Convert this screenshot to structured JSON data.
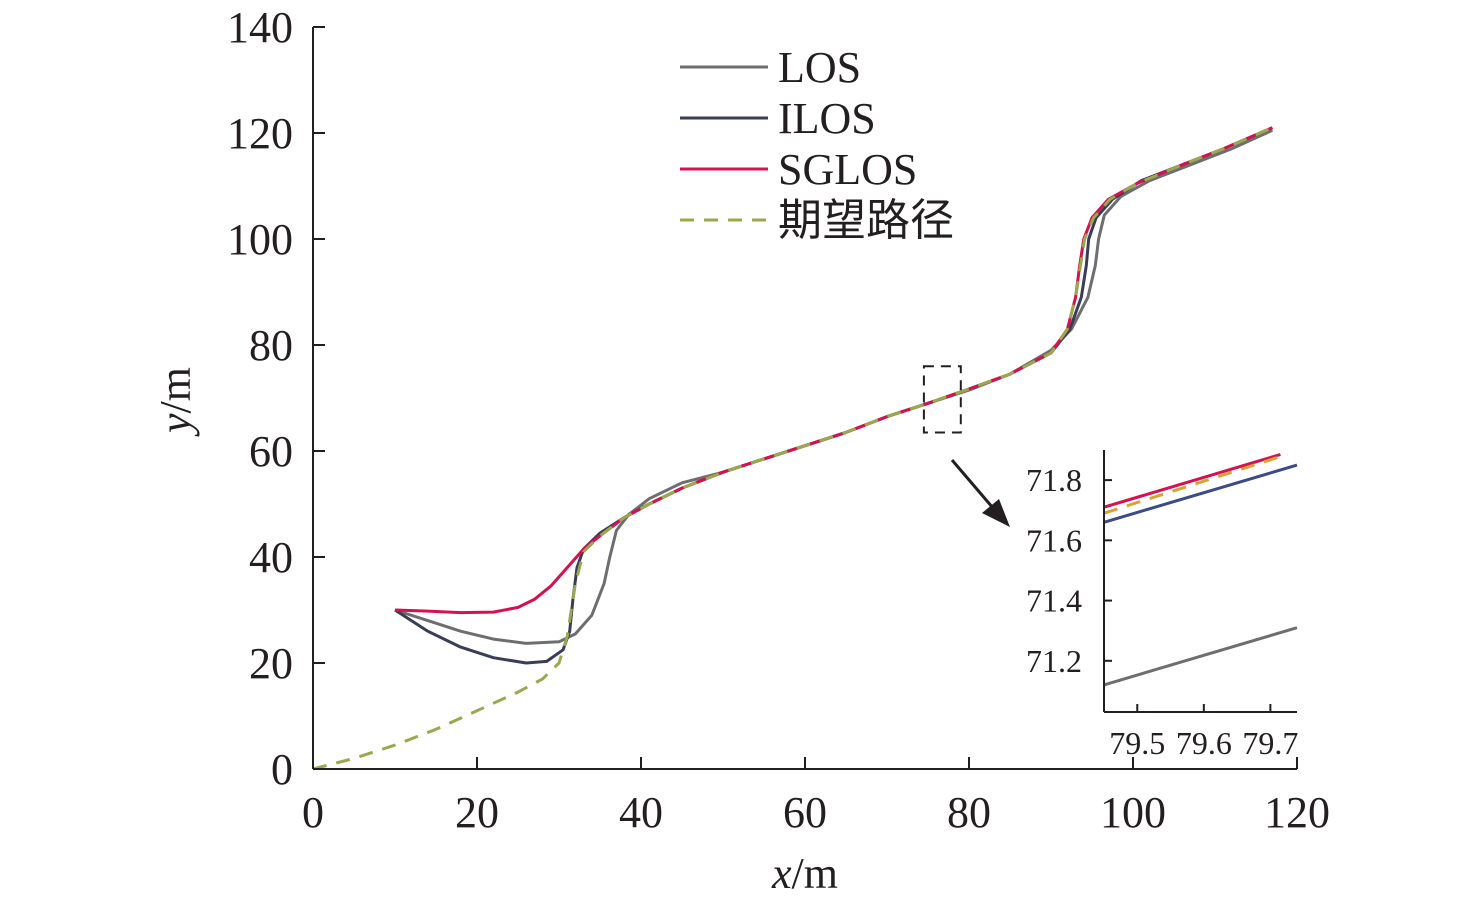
{
  "chart_data": [
    {
      "type": "line",
      "title": "",
      "xlabel": "x/m",
      "ylabel": "y/m",
      "xlabel_var": "x",
      "xlabel_unit": "/m",
      "ylabel_var": "y",
      "ylabel_unit": "/m",
      "xlim": [
        0,
        120
      ],
      "ylim": [
        0,
        140
      ],
      "xticks": [
        0,
        20,
        40,
        60,
        80,
        100,
        120
      ],
      "yticks": [
        0,
        20,
        40,
        60,
        80,
        100,
        120,
        140
      ],
      "grid": false,
      "legend_position": "top-center",
      "series": [
        {
          "name": "LOS",
          "color": "#6d6e70",
          "dash": "solid",
          "points": [
            [
              10,
              30
            ],
            [
              14,
              28
            ],
            [
              18,
              26
            ],
            [
              22,
              24.5
            ],
            [
              26,
              23.7
            ],
            [
              30,
              24
            ],
            [
              32,
              25.5
            ],
            [
              34,
              29
            ],
            [
              35.5,
              35
            ],
            [
              36.2,
              40
            ],
            [
              37,
              45
            ],
            [
              38.5,
              48
            ],
            [
              41,
              51
            ],
            [
              45,
              54
            ],
            [
              50,
              56
            ],
            [
              55,
              58.5
            ],
            [
              60,
              61
            ],
            [
              65,
              63.5
            ],
            [
              70,
              66.5
            ],
            [
              75,
              69
            ],
            [
              80,
              71.5
            ],
            [
              85,
              74.5
            ],
            [
              90,
              79
            ],
            [
              92.5,
              83
            ],
            [
              94.5,
              89
            ],
            [
              95.4,
              95
            ],
            [
              95.8,
              100
            ],
            [
              96.5,
              104.5
            ],
            [
              98.5,
              108
            ],
            [
              102,
              111
            ],
            [
              107,
              114
            ],
            [
              112,
              117
            ],
            [
              117,
              120.5
            ]
          ]
        },
        {
          "name": "ILOS",
          "color": "#3a3d57",
          "dash": "solid",
          "points": [
            [
              10,
              30
            ],
            [
              14,
              26
            ],
            [
              18,
              23
            ],
            [
              22,
              21
            ],
            [
              26,
              20
            ],
            [
              28.5,
              20.3
            ],
            [
              30.5,
              22.5
            ],
            [
              31.3,
              26
            ],
            [
              31.7,
              32
            ],
            [
              32.2,
              38
            ],
            [
              33,
              41.5
            ],
            [
              35,
              44.5
            ],
            [
              38,
              47.5
            ],
            [
              41,
              50
            ],
            [
              45,
              53
            ],
            [
              50,
              56
            ],
            [
              55,
              58.5
            ],
            [
              60,
              61
            ],
            [
              65,
              63.5
            ],
            [
              70,
              66.5
            ],
            [
              75,
              69
            ],
            [
              80,
              71.7
            ],
            [
              85,
              74.5
            ],
            [
              90,
              78.5
            ],
            [
              92.3,
              83
            ],
            [
              93.7,
              89
            ],
            [
              94.3,
              95
            ],
            [
              94.6,
              100
            ],
            [
              95.5,
              104
            ],
            [
              97.5,
              107.5
            ],
            [
              101,
              111
            ],
            [
              106,
              114
            ],
            [
              111,
              117
            ],
            [
              117,
              121
            ]
          ]
        },
        {
          "name": "SGLOS",
          "color": "#d6114f",
          "dash": "solid",
          "points": [
            [
              10,
              30
            ],
            [
              14,
              29.8
            ],
            [
              18,
              29.5
            ],
            [
              22,
              29.6
            ],
            [
              25,
              30.5
            ],
            [
              27,
              32
            ],
            [
              29,
              34.5
            ],
            [
              31,
              38
            ],
            [
              33,
              41.5
            ],
            [
              35,
              44
            ],
            [
              38,
              47.5
            ],
            [
              41,
              50
            ],
            [
              45,
              53
            ],
            [
              50,
              56
            ],
            [
              55,
              58.5
            ],
            [
              60,
              61
            ],
            [
              65,
              63.5
            ],
            [
              70,
              66.5
            ],
            [
              75,
              69
            ],
            [
              80,
              71.7
            ],
            [
              85,
              74.5
            ],
            [
              90,
              78.5
            ],
            [
              92,
              83
            ],
            [
              93,
              89
            ],
            [
              93.5,
              95
            ],
            [
              94,
              100
            ],
            [
              95,
              104
            ],
            [
              97,
              107.5
            ],
            [
              100.5,
              110.5
            ],
            [
              106,
              114
            ],
            [
              111,
              117
            ],
            [
              117,
              121
            ]
          ]
        },
        {
          "name": "期望路径",
          "color": "#9aa84e",
          "dash": "dashed",
          "points": [
            [
              0,
              0
            ],
            [
              5,
              2
            ],
            [
              10,
              4.5
            ],
            [
              15,
              7.5
            ],
            [
              20,
              11
            ],
            [
              25,
              14.5
            ],
            [
              28,
              17
            ],
            [
              30,
              20
            ],
            [
              31,
              25
            ],
            [
              32,
              35
            ],
            [
              33,
              41
            ],
            [
              35,
              44
            ],
            [
              38,
              47.5
            ],
            [
              41,
              50
            ],
            [
              45,
              53
            ],
            [
              50,
              56
            ],
            [
              55,
              58.5
            ],
            [
              60,
              61
            ],
            [
              65,
              63.5
            ],
            [
              70,
              66.5
            ],
            [
              75,
              69
            ],
            [
              80,
              71.7
            ],
            [
              85,
              74.5
            ],
            [
              90,
              78.5
            ],
            [
              92,
              83
            ],
            [
              93,
              89
            ],
            [
              93.6,
              95
            ],
            [
              94.1,
              100
            ],
            [
              95.2,
              104
            ],
            [
              97.2,
              107.5
            ],
            [
              100.5,
              110.5
            ],
            [
              106,
              114
            ],
            [
              111,
              117
            ],
            [
              117,
              121
            ]
          ]
        }
      ],
      "zoom_box": {
        "x": [
          74.5,
          79
        ],
        "y": [
          63.5,
          76
        ]
      }
    },
    {
      "type": "line",
      "title": "",
      "xlabel": "",
      "ylabel": "",
      "xlim": [
        79.45,
        79.74
      ],
      "ylim": [
        71.03,
        71.9
      ],
      "xticks": [
        79.5,
        79.6,
        79.7
      ],
      "xtick_labels": [
        "79.5",
        "79.6",
        "79.7"
      ],
      "yticks": [
        71.2,
        71.4,
        71.6,
        71.8
      ],
      "ytick_labels": [
        "71.2",
        "71.4",
        "71.6",
        "71.8"
      ],
      "grid": false,
      "series": [
        {
          "name": "LOS",
          "color": "#6d6e70",
          "dash": "solid",
          "points": [
            [
              79.45,
              71.12
            ],
            [
              79.74,
              71.31
            ]
          ]
        },
        {
          "name": "ILOS",
          "color": "#3a4a8a",
          "dash": "solid",
          "points": [
            [
              79.45,
              71.66
            ],
            [
              79.74,
              71.85
            ]
          ]
        },
        {
          "name": "SGLOS",
          "color": "#d6114f",
          "dash": "solid",
          "points": [
            [
              79.45,
              71.71
            ],
            [
              79.715,
              71.885
            ]
          ]
        },
        {
          "name": "期望路径",
          "color": "#d8a234",
          "dash": "dashed",
          "points": [
            [
              79.45,
              71.69
            ],
            [
              79.725,
              71.885
            ]
          ]
        }
      ]
    }
  ]
}
